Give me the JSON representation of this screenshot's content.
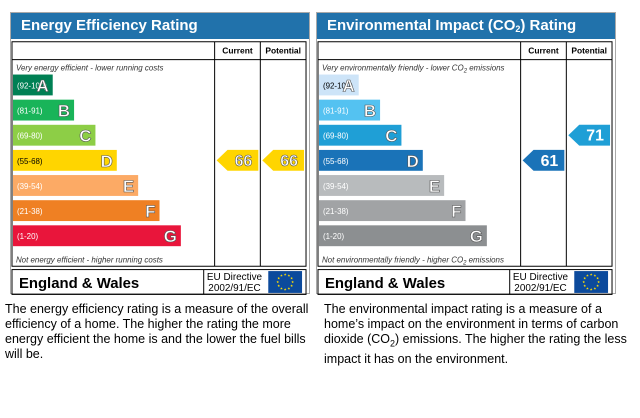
{
  "colors": {
    "title_bar": "#2172ab",
    "frame": "#000000",
    "eu_flag": "#0c4a9c",
    "eu_star": "#ffdd00"
  },
  "energy_efficiency": {
    "title": "Energy Efficiency Rating",
    "header_current": "Current",
    "header_potential": "Potential",
    "top_note": "Very energy efficient - lower running costs",
    "bottom_note": "Not energy efficient - higher running costs",
    "region": "England & Wales",
    "directive_line1": "EU Directive",
    "directive_line2": "2002/91/EC",
    "description": "The energy efficiency rating is a measure of the overall efficiency of a home. The higher the rating the more energy efficient the home is and the lower the fuel bills will be."
  },
  "environmental_impact": {
    "title_main": "Environmental Impact (CO",
    "title_sub": "2",
    "title_end": ") Rating",
    "header_current": "Current",
    "header_potential": "Potential",
    "top_note": "Very environmentally friendly - lower CO",
    "top_note_sub": "2",
    "top_note_end": " emissions",
    "bottom_note": "Not environmentally friendly - higher CO",
    "bottom_note_sub": "2",
    "bottom_note_end": " emissions",
    "region": "England & Wales",
    "directive_line1": "EU Directive",
    "directive_line2": "2002/91/EC",
    "description_1": "The environmental impact rating is a measure of a home’s impact on the environment in terms of carbon dioxide (CO",
    "description_sub": "2",
    "description_2": ") emissions. The higher the rating the less impact it has on the environment."
  },
  "chart_data": [
    {
      "type": "bar",
      "title": "Energy Efficiency Rating",
      "categories": [
        "A",
        "B",
        "C",
        "D",
        "E",
        "F",
        "G"
      ],
      "ranges": [
        "(92-100)",
        "(81-91)",
        "(69-80)",
        "(55-68)",
        "(39-54)",
        "(21-38)",
        "(1-20)"
      ],
      "colors": [
        "#008054",
        "#19b459",
        "#8dce46",
        "#ffd500",
        "#fcaa65",
        "#ef8023",
        "#e9153b"
      ],
      "current": 66,
      "potential": 66,
      "current_band": "D",
      "potential_band": "D",
      "arrow_color_current": "#ffd500",
      "arrow_color_potential": "#ffd500"
    },
    {
      "type": "bar",
      "title": "Environmental Impact (CO2) Rating",
      "categories": [
        "A",
        "B",
        "C",
        "D",
        "E",
        "F",
        "G"
      ],
      "ranges": [
        "(92-100)",
        "(81-91)",
        "(69-80)",
        "(55-68)",
        "(39-54)",
        "(21-38)",
        "(1-20)"
      ],
      "colors": [
        "#cde4f8",
        "#54c2f1",
        "#1f9fd6",
        "#1a73b8",
        "#b8bbbd",
        "#a1a3a5",
        "#8c8f91"
      ],
      "current": 61,
      "potential": 71,
      "current_band": "D",
      "potential_band": "C",
      "arrow_color_current": "#1a73b8",
      "arrow_color_potential": "#1f9fd6"
    }
  ]
}
